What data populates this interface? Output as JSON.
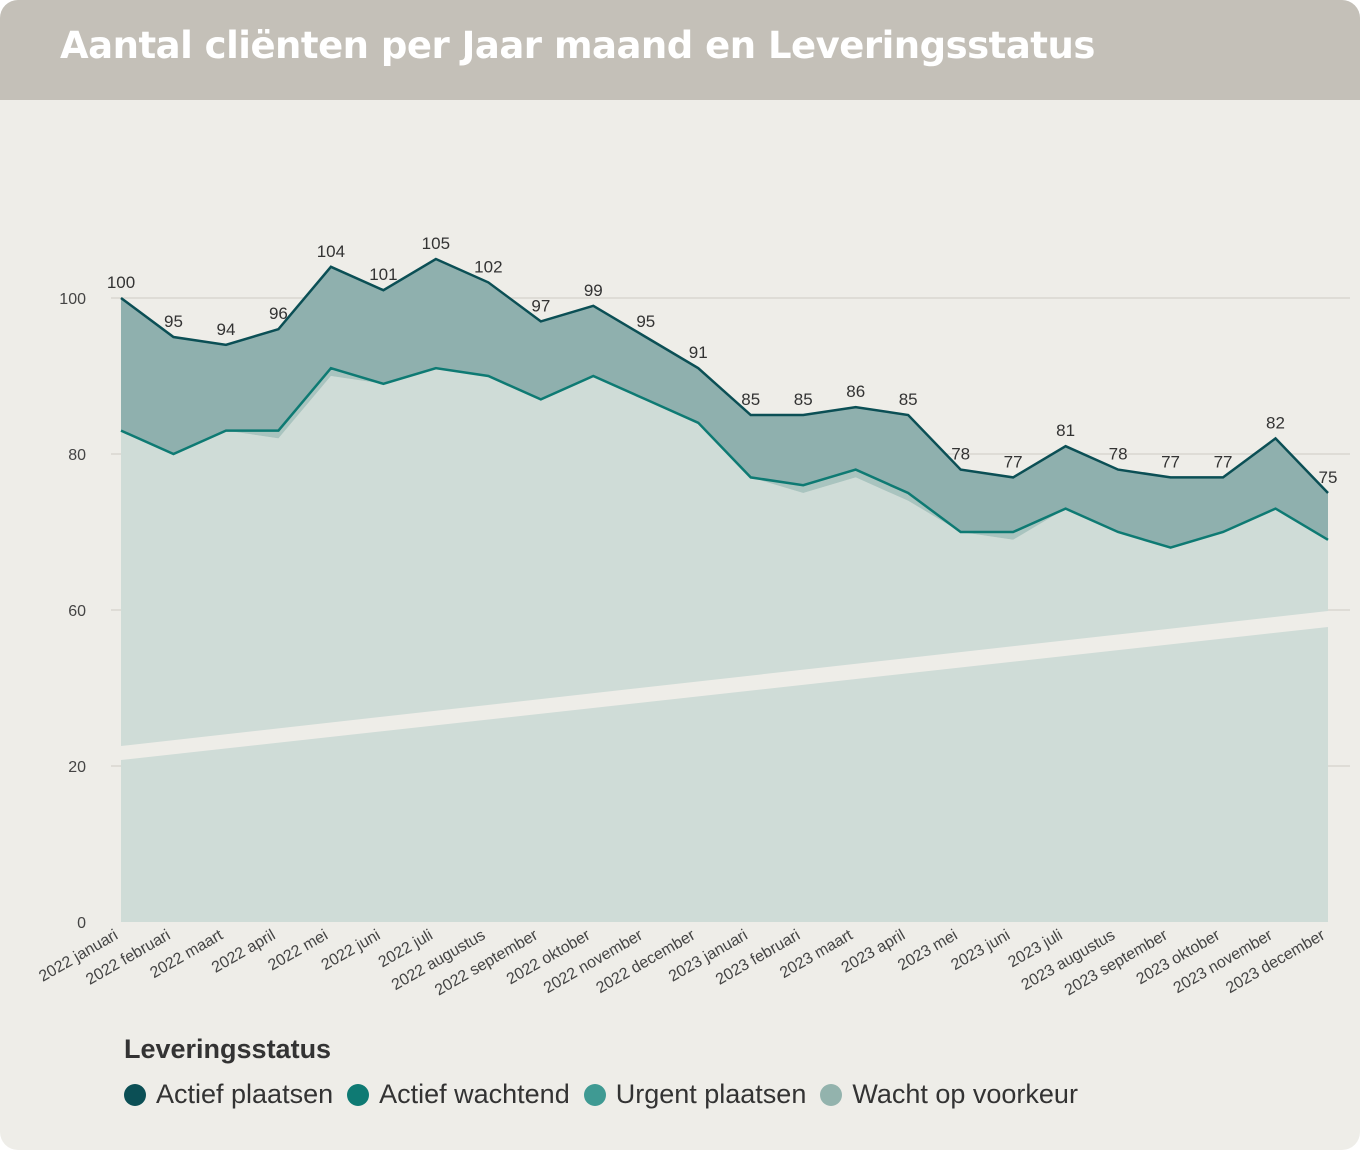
{
  "header": {
    "title": "Aantal cliënten per Jaar maand en Leveringsstatus"
  },
  "colors": {
    "background": "#eeede8",
    "header": "#c4c0b8",
    "actief_plaatsen": "#0b4f55",
    "actief_wachtend": "#0e7a73",
    "urgent_plaatsen": "#3f9a93",
    "wacht_op_voorkeur": "#93b3ad",
    "area_total": "#8fb0ae",
    "area_base": "#cfdcd7"
  },
  "chart_data": {
    "type": "area",
    "stacked": true,
    "y_axis_break": true,
    "y_ticks": [
      0,
      20,
      60,
      80,
      100
    ],
    "ylim": [
      0,
      105
    ],
    "grid": true,
    "legend_position": "bottom",
    "legend_title": "Leveringsstatus",
    "categories": [
      "2022 januari",
      "2022 februari",
      "2022 maart",
      "2022 april",
      "2022 mei",
      "2022 juni",
      "2022 juli",
      "2022 augustus",
      "2022 september",
      "2022 oktober",
      "2022 november",
      "2022 december",
      "2023 januari",
      "2023 februari",
      "2023 maart",
      "2023 april",
      "2023 mei",
      "2023 juni",
      "2023 juli",
      "2023 augustus",
      "2023 september",
      "2023 oktober",
      "2023 november",
      "2023 december"
    ],
    "totals": [
      100,
      95,
      94,
      96,
      104,
      101,
      105,
      102,
      97,
      99,
      95,
      91,
      85,
      85,
      86,
      85,
      78,
      77,
      81,
      78,
      77,
      77,
      82,
      75
    ],
    "series": [
      {
        "name": "Actief plaatsen",
        "cumulative_top": [
          100,
          95,
          94,
          96,
          104,
          101,
          105,
          102,
          97,
          99,
          95,
          91,
          85,
          85,
          86,
          85,
          78,
          77,
          81,
          78,
          77,
          77,
          82,
          75
        ]
      },
      {
        "name": "Actief wachtend",
        "cumulative_top": [
          83,
          80,
          83,
          83,
          91,
          89,
          91,
          90,
          87,
          90,
          87,
          84,
          77,
          76,
          78,
          75,
          70,
          70,
          73,
          70,
          68,
          70,
          73,
          69
        ]
      },
      {
        "name": "Urgent plaatsen",
        "cumulative_top": [
          83,
          80,
          83,
          82,
          90,
          89,
          91,
          90,
          87,
          90,
          87,
          84,
          77,
          75,
          77,
          74,
          70,
          69,
          73,
          70,
          68,
          70,
          73,
          69
        ]
      },
      {
        "name": "Wacht op voorkeur",
        "cumulative_top": [
          83,
          80,
          83,
          82,
          90,
          89,
          91,
          90,
          87,
          90,
          87,
          84,
          77,
          75,
          77,
          74,
          70,
          69,
          73,
          70,
          68,
          70,
          73,
          69
        ]
      }
    ]
  },
  "legend": {
    "title": "Leveringsstatus",
    "items": [
      {
        "label": "Actief plaatsen",
        "color": "#0b4f55"
      },
      {
        "label": "Actief wachtend",
        "color": "#0e7a73"
      },
      {
        "label": "Urgent plaatsen",
        "color": "#3f9a93"
      },
      {
        "label": "Wacht op voorkeur",
        "color": "#93b3ad"
      }
    ]
  }
}
